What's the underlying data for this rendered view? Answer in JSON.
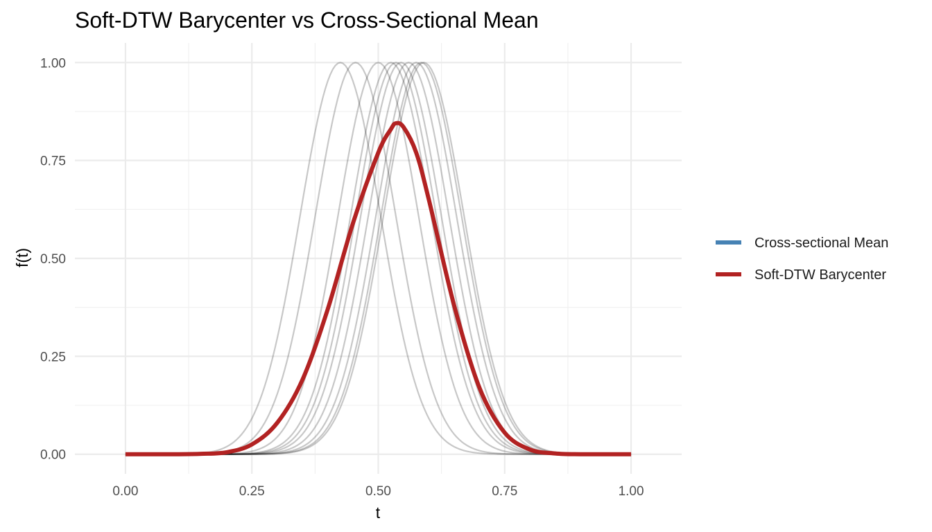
{
  "chart_data": {
    "type": "line",
    "title": "Soft-DTW Barycenter vs Cross-Sectional Mean",
    "xlabel": "t",
    "ylabel": "f(t)",
    "xlim": [
      -0.1,
      1.1
    ],
    "ylim": [
      -0.05,
      1.05
    ],
    "x_ticks": [
      0.0,
      0.25,
      0.5,
      0.75,
      1.0
    ],
    "x_tick_labels": [
      "0.00",
      "0.25",
      "0.50",
      "0.75",
      "1.00"
    ],
    "y_ticks": [
      0.0,
      0.25,
      0.5,
      0.75,
      1.0
    ],
    "y_tick_labels": [
      "0.00",
      "0.25",
      "0.50",
      "0.75",
      "1.00"
    ],
    "grid": true,
    "legend_position": "right",
    "legend": [
      {
        "label": "Cross-sectional Mean",
        "color": "#4682b4"
      },
      {
        "label": "Soft-DTW Barycenter",
        "color": "#b22222"
      }
    ],
    "individual_series": {
      "color": "#000000",
      "opacity": 0.22,
      "peak_locations": [
        0.425,
        0.455,
        0.5,
        0.525,
        0.535,
        0.545,
        0.56,
        0.575,
        0.585,
        0.59
      ],
      "peak_value": 1.0,
      "sigma": 0.08
    },
    "cross_sectional_mean": {
      "name": "Cross-sectional Mean",
      "color": "#4682b4",
      "visible_in_plot": false
    },
    "soft_dtw_barycenter": {
      "name": "Soft-DTW Barycenter",
      "color": "#b22222",
      "x": [
        0.0,
        0.1,
        0.15,
        0.2,
        0.25,
        0.3,
        0.35,
        0.4,
        0.45,
        0.5,
        0.525,
        0.535,
        0.55,
        0.575,
        0.6,
        0.65,
        0.7,
        0.75,
        0.8,
        0.85,
        0.9,
        1.0
      ],
      "y": [
        0.0,
        0.0,
        0.001,
        0.005,
        0.025,
        0.08,
        0.19,
        0.37,
        0.59,
        0.77,
        0.83,
        0.845,
        0.835,
        0.77,
        0.65,
        0.38,
        0.17,
        0.055,
        0.012,
        0.002,
        0.0,
        0.0
      ]
    }
  }
}
